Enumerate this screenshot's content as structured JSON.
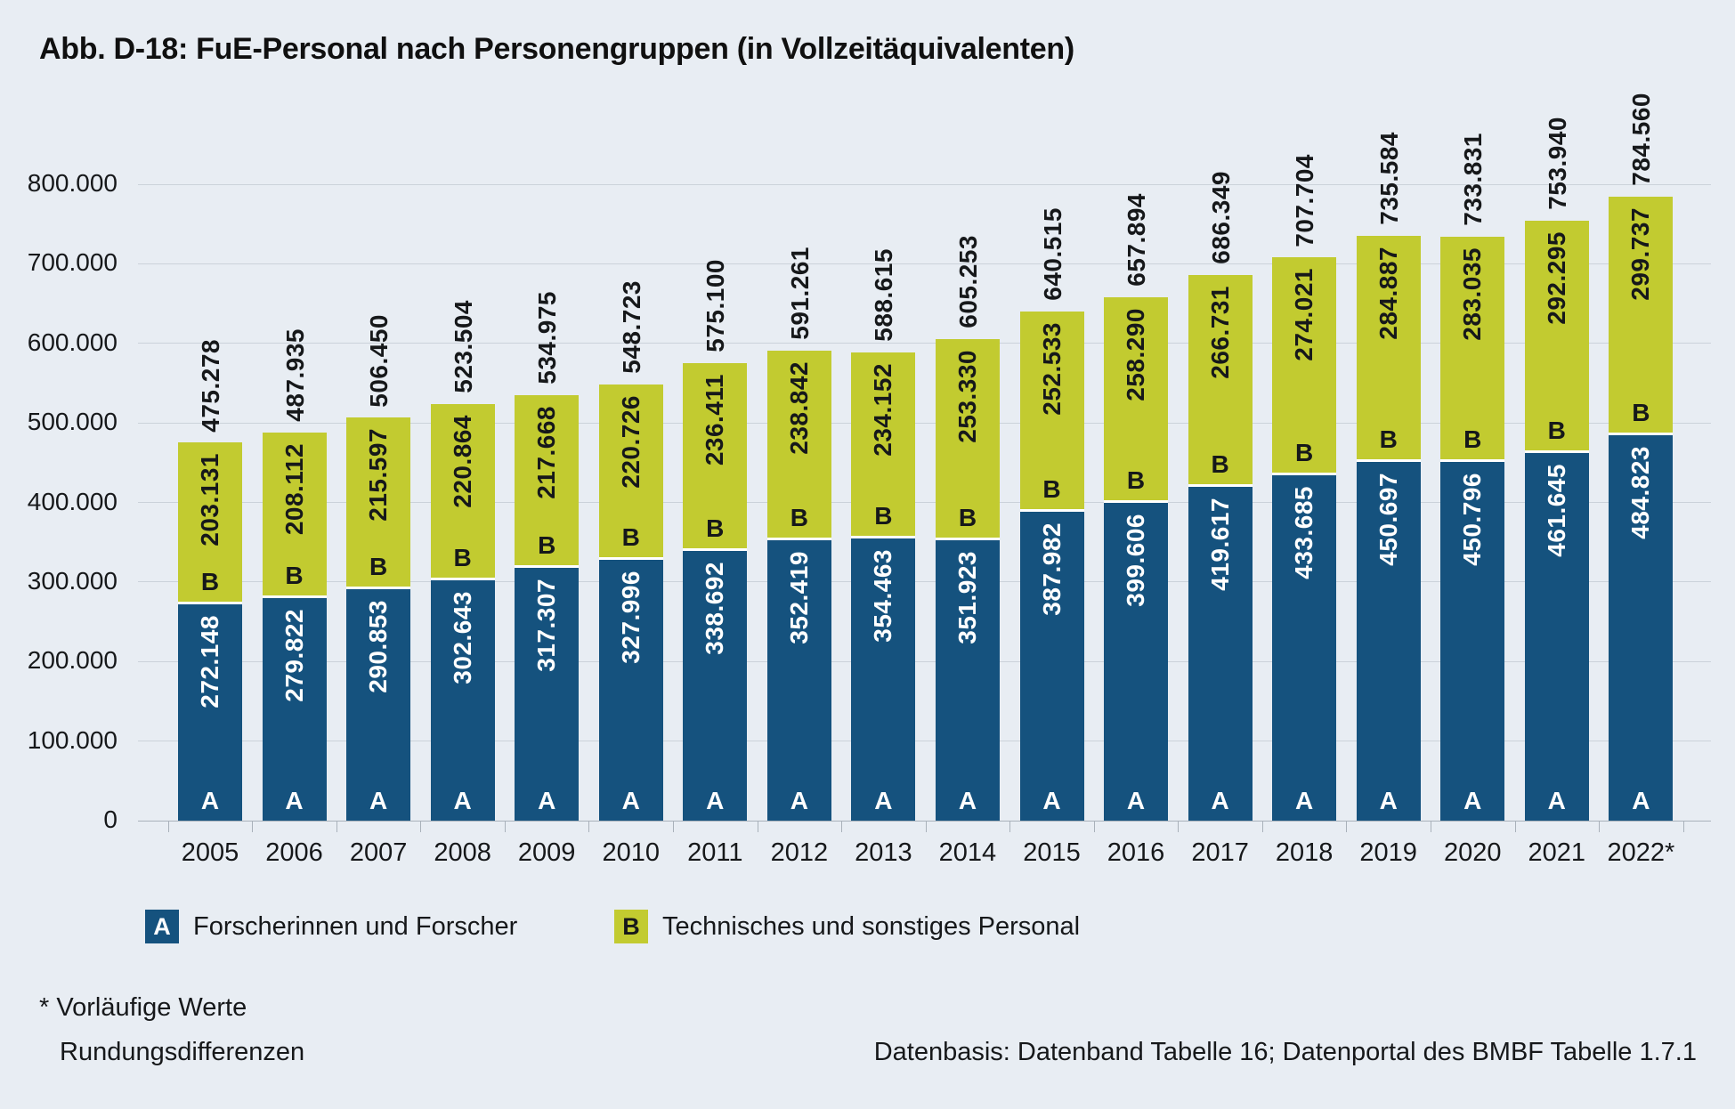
{
  "title": "Abb. D-18: FuE-Personal nach Personengruppen (in Vollzeitäquivalenten)",
  "chart_data": {
    "type": "bar",
    "stacked": true,
    "title": "Abb. D-18: FuE-Personal nach Personengruppen (in Vollzeitäquivalenten)",
    "categories": [
      "2005",
      "2006",
      "2007",
      "2008",
      "2009",
      "2010",
      "2011",
      "2012",
      "2013",
      "2014",
      "2015",
      "2016",
      "2017",
      "2018",
      "2019",
      "2020",
      "2021",
      "2022*"
    ],
    "series": [
      {
        "key": "A",
        "name": "Forscherinnen und Forscher",
        "color": "#15527e",
        "values": [
          272148,
          279822,
          290853,
          302643,
          317307,
          327996,
          338692,
          352419,
          354463,
          351923,
          387982,
          399606,
          419617,
          433685,
          450697,
          450796,
          461645,
          484823
        ],
        "labels": [
          "272.148",
          "279.822",
          "290.853",
          "302.643",
          "317.307",
          "327.996",
          "338.692",
          "352.419",
          "354.463",
          "351.923",
          "387.982",
          "399.606",
          "419.617",
          "433.685",
          "450.697",
          "450.796",
          "461.645",
          "484.823"
        ]
      },
      {
        "key": "B",
        "name": "Technisches und sonstiges Personal",
        "color": "#c2cb30",
        "values": [
          203131,
          208112,
          215597,
          220864,
          217668,
          220726,
          236411,
          238842,
          234152,
          253330,
          252533,
          258290,
          266731,
          274021,
          284887,
          283035,
          292295,
          299737
        ],
        "labels": [
          "203.131",
          "208.112",
          "215.597",
          "220.864",
          "217.668",
          "220.726",
          "236.411",
          "238.842",
          "234.152",
          "253.330",
          "252.533",
          "258.290",
          "266.731",
          "274.021",
          "284.887",
          "283.035",
          "292.295",
          "299.737"
        ]
      }
    ],
    "totals": [
      475278,
      487935,
      506450,
      523504,
      534975,
      548723,
      575100,
      591261,
      588615,
      605253,
      640515,
      657894,
      686349,
      707704,
      735584,
      733831,
      753940,
      784560
    ],
    "total_labels": [
      "475.278",
      "487.935",
      "506.450",
      "523.504",
      "534.975",
      "548.723",
      "575.100",
      "591.261",
      "588.615",
      "605.253",
      "640.515",
      "657.894",
      "686.349",
      "707.704",
      "735.584",
      "733.831",
      "753.940",
      "784.560"
    ],
    "xlabel": "",
    "ylabel": "",
    "ylim": [
      0,
      800000
    ],
    "ytick_labels": [
      "0",
      "100.000",
      "200.000",
      "300.000",
      "400.000",
      "500.000",
      "600.000",
      "700.000",
      "800.000"
    ],
    "grid": true,
    "legend_position": "bottom"
  },
  "legend": {
    "items": [
      {
        "key": "A",
        "label": "Forscherinnen und Forscher"
      },
      {
        "key": "B",
        "label": "Technisches und sonstiges Personal"
      }
    ]
  },
  "footnotes": {
    "line1": "* Vorläufige Werte",
    "line2": "Rundungsdifferenzen",
    "source": "Datenbasis: Datenband Tabelle 16; Datenportal des BMBF Tabelle 1.7.1"
  }
}
